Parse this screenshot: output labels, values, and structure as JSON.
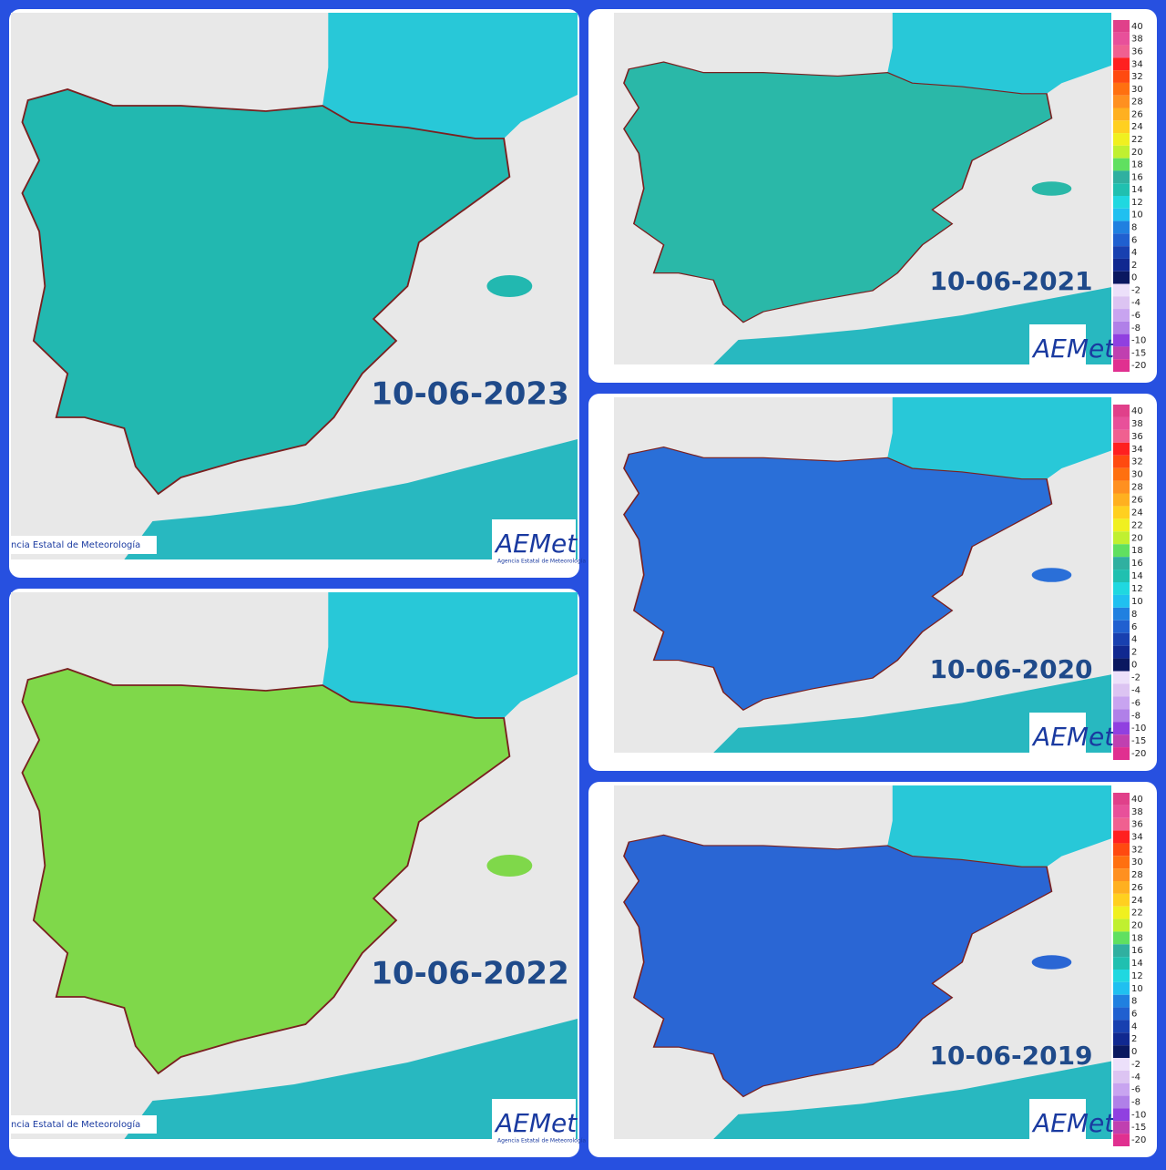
{
  "panels": [
    {
      "date": "10-06-2023",
      "fill": "#22b8b0",
      "credit": "ncia Estatal de Meteorología",
      "logo": "AEMet",
      "logo_sub": "Agencia Estatal de Meteorología"
    },
    {
      "date": "10-06-2022",
      "fill": "#7fd84a",
      "credit": "ncia Estatal de Meteorología",
      "logo": "AEMet",
      "logo_sub": "Agencia Estatal de Meteorología"
    },
    {
      "date": "10-06-2021",
      "fill": "#2ab8a8",
      "logo": "AEMet"
    },
    {
      "date": "10-06-2020",
      "fill": "#2a6fd8",
      "logo": "AEMet"
    },
    {
      "date": "10-06-2019",
      "fill": "#2a66d4",
      "logo": "AEMet"
    }
  ],
  "legend": {
    "labels": [
      40,
      38,
      36,
      34,
      32,
      30,
      28,
      26,
      24,
      22,
      20,
      18,
      16,
      14,
      12,
      10,
      8,
      6,
      4,
      2,
      0,
      -2,
      -4,
      -6,
      -8,
      -10,
      -15,
      -20
    ],
    "colors": [
      "#e0408a",
      "#e8509a",
      "#f06090",
      "#ff2020",
      "#ff4a10",
      "#ff7010",
      "#ff9020",
      "#ffb020",
      "#ffd020",
      "#f0f020",
      "#c0f030",
      "#60e060",
      "#30b0a0",
      "#20c0b0",
      "#20d8e0",
      "#20c0f0",
      "#2080e0",
      "#2060d0",
      "#1840b0",
      "#102890",
      "#0a1860",
      "#ece0fa",
      "#dcc4f2",
      "#c8a4f0",
      "#b080e8",
      "#9040e0",
      "#c040b0",
      "#e03090"
    ]
  }
}
